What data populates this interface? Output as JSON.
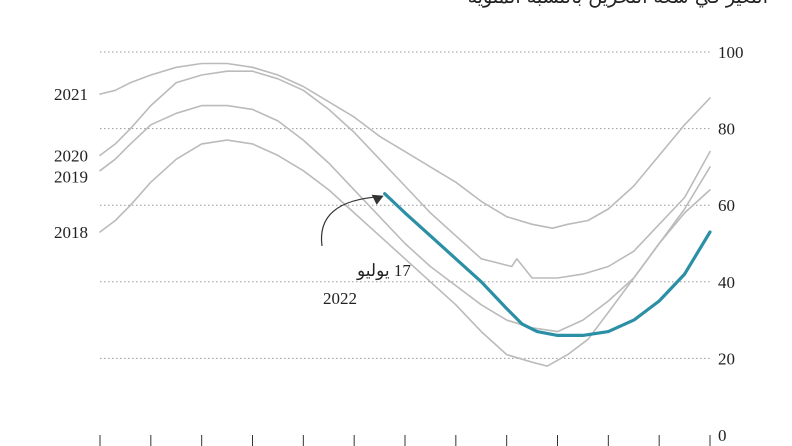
{
  "title": "التغير في سعة التخزين بالنسبة المئوية",
  "chart_data": {
    "type": "line",
    "title": "التغير في سعة التخزين بالنسبة المئوية",
    "xlabel": "",
    "ylabel": "",
    "ylim": [
      0,
      100
    ],
    "xlim": [
      0,
      12
    ],
    "yticks": [
      "0",
      "20",
      "40",
      "60",
      "80",
      "100"
    ],
    "grid": true,
    "annotation": {
      "line1": "17 يوليو",
      "line2": "2022"
    },
    "series": [
      {
        "name": "2021",
        "color": "#bbbbbb",
        "x": [
          0,
          0.3,
          0.6,
          1,
          1.5,
          2,
          2.5,
          3,
          3.5,
          4,
          4.5,
          5,
          5.5,
          6,
          6.5,
          7,
          7.5,
          8,
          8.5,
          8.9,
          9.2,
          9.6,
          10,
          10.5,
          11,
          11.5,
          12
        ],
        "y": [
          89,
          90,
          92,
          94,
          96,
          97,
          97,
          96,
          94,
          91,
          87,
          83,
          78,
          74,
          70,
          66,
          61,
          57,
          55,
          54,
          55,
          56,
          59,
          65,
          73,
          81,
          88
        ]
      },
      {
        "name": "2020",
        "color": "#bbbbbb",
        "x": [
          0,
          0.3,
          0.6,
          1,
          1.5,
          2,
          2.5,
          3,
          3.5,
          4,
          4.5,
          5,
          5.5,
          6,
          6.5,
          7,
          7.5,
          7.8,
          8.1,
          8.2,
          8.5,
          9,
          9.5,
          10,
          10.5,
          11,
          11.5,
          12
        ],
        "y": [
          73,
          76,
          80,
          86,
          92,
          94,
          95,
          95,
          93,
          90,
          85,
          79,
          72,
          65,
          58,
          52,
          46,
          45,
          44,
          46,
          41,
          41,
          42,
          44,
          48,
          55,
          62,
          74
        ]
      },
      {
        "name": "2019",
        "color": "#bbbbbb",
        "x": [
          0,
          0.3,
          0.6,
          1,
          1.5,
          2,
          2.5,
          3,
          3.5,
          4,
          4.5,
          5,
          5.5,
          6,
          6.5,
          7,
          7.5,
          8,
          8.5,
          9,
          9.5,
          10,
          10.5,
          11,
          11.5,
          12
        ],
        "y": [
          69,
          72,
          76,
          81,
          84,
          86,
          86,
          85,
          82,
          77,
          71,
          64,
          57,
          50,
          44,
          39,
          34,
          30,
          28,
          27,
          30,
          35,
          41,
          50,
          58,
          64
        ]
      },
      {
        "name": "2018",
        "color": "#bbbbbb",
        "x": [
          0,
          0.3,
          0.6,
          1,
          1.5,
          2,
          2.5,
          3,
          3.5,
          4,
          4.5,
          5,
          5.5,
          6,
          6.5,
          7,
          7.5,
          8,
          8.5,
          8.8,
          9.2,
          9.6,
          10,
          10.5,
          11,
          11.5,
          12
        ],
        "y": [
          53,
          56,
          60,
          66,
          72,
          76,
          77,
          76,
          73,
          69,
          64,
          58,
          52,
          46,
          40,
          34,
          27,
          21,
          19,
          18,
          21,
          25,
          32,
          41,
          50,
          59,
          70
        ]
      },
      {
        "name": "2022",
        "color": "#2b8fa6",
        "x": [
          5.6,
          6,
          6.5,
          7,
          7.5,
          8,
          8.3,
          8.6,
          9,
          9.5,
          10,
          10.5,
          11,
          11.5,
          12
        ],
        "y": [
          63,
          58,
          52,
          46,
          40,
          33,
          29,
          27,
          26,
          26,
          27,
          30,
          35,
          42,
          53
        ]
      }
    ]
  }
}
